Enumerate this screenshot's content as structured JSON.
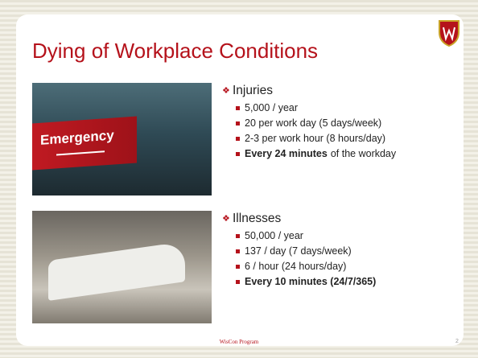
{
  "slide": {
    "title": "Dying of Workplace Conditions",
    "photo_sign": "Emergency",
    "sections": [
      {
        "heading": "Injuries",
        "items": [
          "5,000 / year",
          "20 per work day (5 days/week)",
          "2-3 per work hour (8 hours/day)"
        ],
        "emphasis": {
          "bold": "Every 24 minutes",
          "rest": "of the workday"
        }
      },
      {
        "heading": "Illnesses",
        "items": [
          "50,000 / year",
          "137 / day (7 days/week)",
          "6 / hour (24 hours/day)"
        ],
        "emphasis": {
          "bold": "Every 10 minutes (24/7/365)"
        }
      }
    ],
    "footer": "WisCon Program",
    "page_number": "2"
  }
}
